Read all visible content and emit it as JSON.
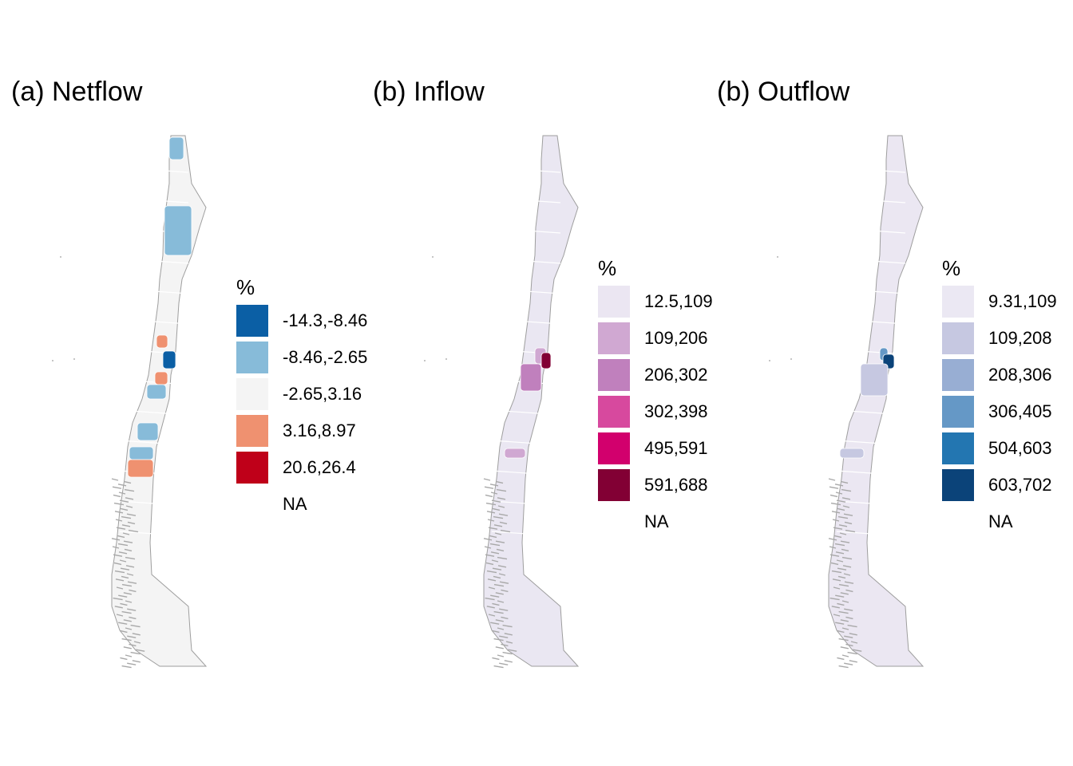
{
  "panels": [
    {
      "id": "netflow",
      "title": "(a) Netflow",
      "base_fill": "#f4f4f4",
      "legend": {
        "title": "%",
        "items": [
          {
            "label": "-14.3,-8.46",
            "color": "#0b5fa5"
          },
          {
            "label": "-8.46,-2.65",
            "color": "#87bbd9"
          },
          {
            "label": "-2.65,3.16",
            "color": "#f4f4f4"
          },
          {
            "label": "3.16,8.97",
            "color": "#ef9170"
          },
          {
            "label": "20.6,26.4",
            "color": "#bf0019"
          },
          {
            "label": "NA",
            "color": "#ffffff"
          }
        ]
      }
    },
    {
      "id": "inflow",
      "title": "(b) Inflow",
      "base_fill": "#eae7f2",
      "legend": {
        "title": "%",
        "items": [
          {
            "label": "12.5,109",
            "color": "#ebe6f2"
          },
          {
            "label": "109,206",
            "color": "#d0a8d2"
          },
          {
            "label": "206,302",
            "color": "#c080bd"
          },
          {
            "label": "302,398",
            "color": "#d7499e"
          },
          {
            "label": "495,591",
            "color": "#d2006d"
          },
          {
            "label": "591,688",
            "color": "#820034"
          },
          {
            "label": "NA",
            "color": "#ffffff"
          }
        ]
      }
    },
    {
      "id": "outflow",
      "title": "(b) Outflow",
      "base_fill": "#ebe7f2",
      "legend": {
        "title": "%",
        "items": [
          {
            "label": "9.31,109",
            "color": "#ebe8f3"
          },
          {
            "label": "109,208",
            "color": "#c6c8e1"
          },
          {
            "label": "208,306",
            "color": "#98aed3"
          },
          {
            "label": "306,405",
            "color": "#6598c6"
          },
          {
            "label": "504,603",
            "color": "#2376b1"
          },
          {
            "label": "603,702",
            "color": "#0b4379"
          },
          {
            "label": "NA",
            "color": "#ffffff"
          }
        ]
      }
    }
  ]
}
